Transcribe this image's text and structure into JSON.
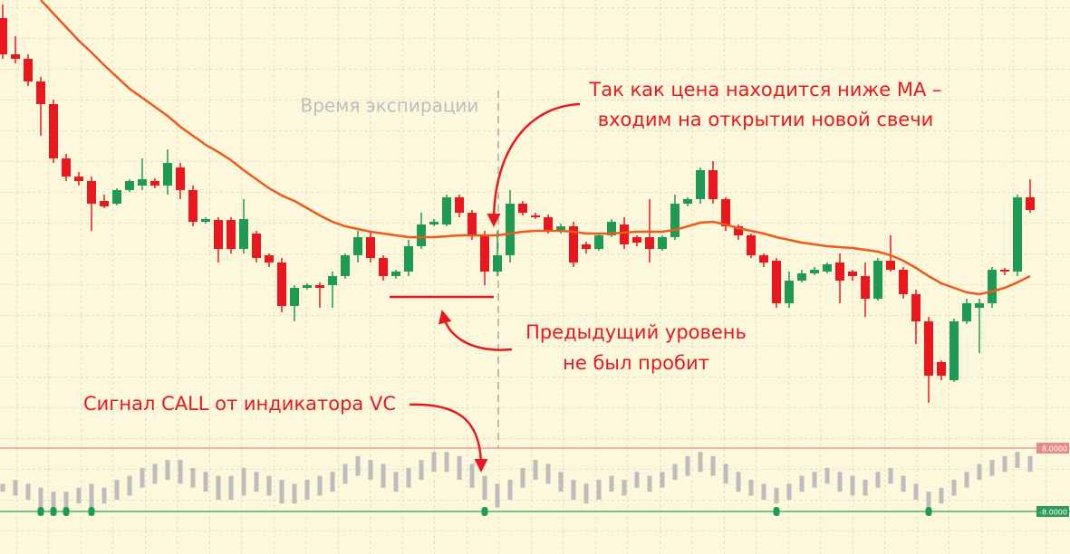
{
  "chart_data": {
    "type": "candlestick",
    "ylim": [
      0,
      480
    ],
    "colors": {
      "up": "#1e9a55",
      "down": "#e8191e",
      "ma": "#ec5a1c",
      "indicator": "#bdbdbd",
      "signal": "#1e9a55"
    },
    "open": [
      460,
      420,
      415,
      390,
      365,
      305,
      285,
      280,
      258,
      255,
      270,
      275,
      280,
      275,
      295,
      270,
      235,
      237,
      237,
      205,
      222,
      198,
      190,
      142,
      162,
      165,
      165,
      175,
      198,
      218,
      195,
      175,
      180,
      208,
      232,
      232,
      262,
      245,
      220,
      180,
      198,
      255,
      242,
      240,
      225,
      230,
      210,
      205,
      220,
      232,
      218,
      218,
      205,
      218,
      255,
      260,
      292,
      260,
      230,
      220,
      198,
      192,
      145,
      170,
      178,
      180,
      190,
      180,
      175,
      150,
      192,
      182,
      155,
      125,
      80,
      60,
      125,
      140,
      145,
      182,
      180,
      262
    ],
    "close": [
      420,
      415,
      390,
      365,
      305,
      285,
      280,
      255,
      252,
      270,
      280,
      282,
      275,
      300,
      270,
      235,
      238,
      205,
      205,
      238,
      195,
      190,
      142,
      162,
      165,
      162,
      175,
      198,
      218,
      195,
      175,
      180,
      208,
      232,
      235,
      262,
      245,
      220,
      180,
      198,
      255,
      245,
      240,
      225,
      230,
      190,
      205,
      220,
      235,
      210,
      212,
      205,
      218,
      255,
      260,
      292,
      260,
      230,
      220,
      198,
      190,
      145,
      170,
      178,
      182,
      188,
      170,
      175,
      150,
      192,
      182,
      155,
      125,
      65,
      65,
      125,
      145,
      145,
      182,
      180,
      262,
      248
    ],
    "high": [
      475,
      440,
      420,
      395,
      370,
      310,
      290,
      285,
      265,
      272,
      282,
      305,
      283,
      315,
      300,
      275,
      240,
      240,
      240,
      260,
      225,
      200,
      195,
      165,
      167,
      168,
      180,
      200,
      225,
      225,
      198,
      182,
      215,
      245,
      238,
      265,
      265,
      248,
      225,
      225,
      270,
      258,
      245,
      243,
      233,
      235,
      213,
      222,
      238,
      240,
      220,
      260,
      220,
      265,
      262,
      295,
      302,
      262,
      232,
      222,
      200,
      195,
      180,
      182,
      185,
      190,
      200,
      182,
      190,
      195,
      220,
      185,
      160,
      130,
      82,
      128,
      150,
      150,
      185,
      184,
      265,
      282
    ],
    "low": [
      415,
      410,
      385,
      330,
      300,
      280,
      275,
      225,
      250,
      253,
      268,
      270,
      272,
      265,
      260,
      230,
      233,
      190,
      200,
      200,
      190,
      185,
      135,
      125,
      160,
      140,
      140,
      172,
      190,
      190,
      170,
      172,
      175,
      205,
      230,
      230,
      240,
      215,
      165,
      175,
      190,
      242,
      238,
      222,
      222,
      185,
      200,
      203,
      218,
      205,
      208,
      190,
      203,
      215,
      252,
      255,
      255,
      225,
      215,
      195,
      185,
      140,
      140,
      168,
      176,
      178,
      145,
      170,
      130,
      148,
      180,
      150,
      100,
      35,
      60,
      58,
      122,
      90,
      140,
      176,
      175,
      245
    ],
    "ma": {
      "values": [
        null,
        null,
        null,
        480,
        465,
        450,
        435,
        422,
        408,
        395,
        382,
        372,
        362,
        352,
        340,
        330,
        320,
        312,
        303,
        292,
        282,
        272,
        264,
        258,
        250,
        242,
        235,
        230,
        227,
        224,
        222,
        220,
        218,
        218,
        218,
        219,
        220,
        220,
        220,
        220,
        222,
        224,
        225,
        225,
        225,
        224,
        222,
        222,
        222,
        223,
        224,
        224,
        224,
        226,
        230,
        234,
        235,
        232,
        228,
        225,
        222,
        218,
        215,
        212,
        210,
        208,
        207,
        206,
        204,
        202,
        198,
        192,
        184,
        175,
        167,
        162,
        157,
        155,
        158,
        162,
        168,
        175
      ]
    },
    "level": {
      "value": 152
    },
    "indicator": {
      "ylim": [
        -8,
        8
      ],
      "high": [
        -1,
        0,
        -1,
        -2,
        -3,
        -3,
        -2,
        -1,
        -2,
        0,
        1,
        3,
        4,
        5,
        5,
        3,
        2,
        1,
        1,
        3,
        2,
        1,
        0,
        -1,
        0,
        1,
        2,
        4,
        6,
        5,
        4,
        2,
        3,
        5,
        7,
        7,
        6,
        4,
        1,
        -1,
        0,
        3,
        5,
        4,
        2,
        0,
        -1,
        0,
        1,
        0,
        2,
        1,
        2,
        4,
        6,
        7,
        6,
        4,
        2,
        0,
        -1,
        -2,
        -1,
        1,
        2,
        3,
        2,
        1,
        0,
        2,
        3,
        1,
        -1,
        -3,
        -2,
        0,
        2,
        4,
        5,
        6,
        7,
        6
      ],
      "low": [
        -3,
        -4,
        -5,
        -7,
        -8,
        -8,
        -6,
        -7,
        -6,
        -5,
        -4,
        -2,
        -1,
        0,
        -1,
        -2,
        -3,
        -5,
        -5,
        -4,
        -3,
        -4,
        -6,
        -6,
        -5,
        -4,
        -3,
        -1,
        1,
        0,
        -2,
        -3,
        -2,
        0,
        2,
        2,
        0,
        -2,
        -5,
        -7,
        -5,
        -2,
        0,
        -1,
        -3,
        -5,
        -6,
        -5,
        -3,
        -4,
        -2,
        -3,
        -2,
        0,
        1,
        2,
        1,
        -1,
        -3,
        -4,
        -5,
        -6,
        -5,
        -3,
        -2,
        -1,
        -3,
        -4,
        -4,
        -2,
        -1,
        -3,
        -5,
        -7,
        -6,
        -4,
        -2,
        0,
        1,
        2,
        3,
        2
      ],
      "levels": [
        {
          "value": 8,
          "label": "8.0000"
        },
        {
          "value": -8,
          "label": "-8.0000"
        }
      ],
      "signal_candles": [
        3,
        4,
        5,
        7,
        38,
        61,
        73
      ]
    },
    "annotations": [
      "Время экспирации",
      "Так как цена находится ниже МА –",
      "входим на открытии новой свечи",
      "Предыдущий уровень",
      "не был пробит",
      "Сигнал CALL от индикатора VC"
    ]
  }
}
